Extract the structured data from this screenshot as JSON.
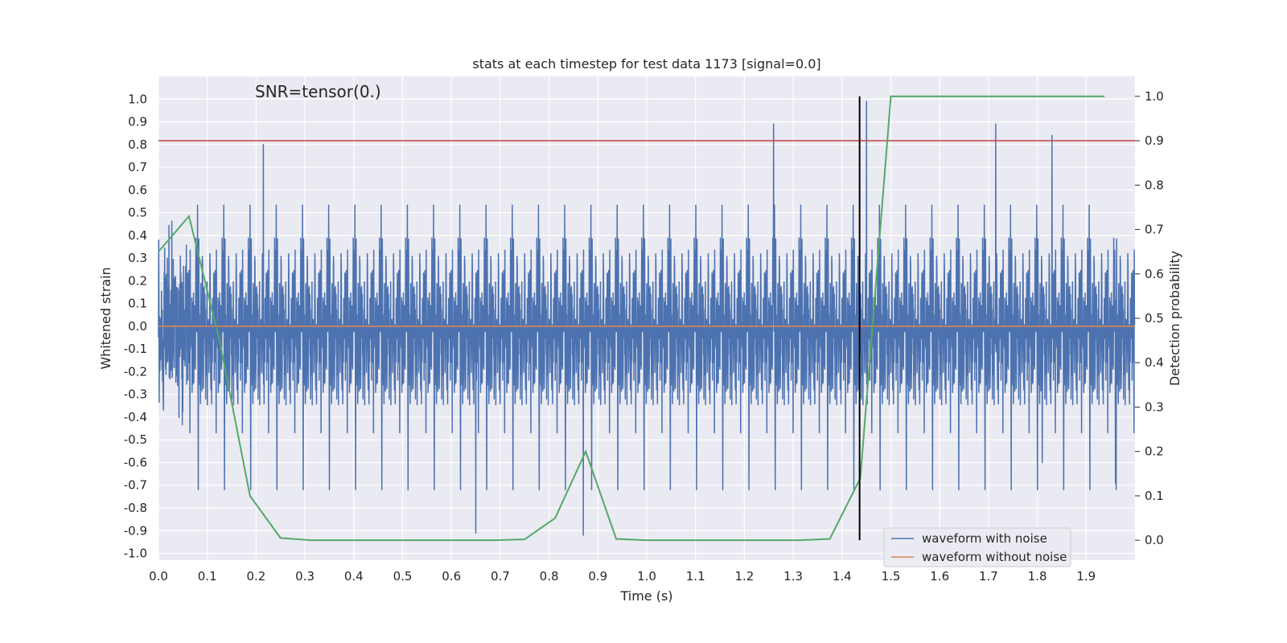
{
  "chart_data": {
    "type": "line",
    "title": "stats at each timestep for test data 1173 [signal=0.0]",
    "annotation": "SNR=tensor(0.)",
    "xlabel": "Time (s)",
    "ylabel": "Whitened strain",
    "y2label": "Detection probability",
    "xlim": [
      0.0,
      2.0
    ],
    "ylim": [
      -1.03,
      1.1
    ],
    "y2lim": [
      -0.045,
      1.045
    ],
    "x_ticks": [
      "0.0",
      "0.1",
      "0.2",
      "0.3",
      "0.4",
      "0.5",
      "0.6",
      "0.7",
      "0.8",
      "0.9",
      "1.0",
      "1.1",
      "1.2",
      "1.3",
      "1.4",
      "1.5",
      "1.6",
      "1.7",
      "1.8",
      "1.9"
    ],
    "y_ticks": [
      "-1.0",
      "-0.9",
      "-0.8",
      "-0.7",
      "-0.6",
      "-0.5",
      "-0.4",
      "-0.3",
      "-0.2",
      "-0.1",
      "0.0",
      "0.1",
      "0.2",
      "0.3",
      "0.4",
      "0.5",
      "0.6",
      "0.7",
      "0.8",
      "0.9",
      "1.0"
    ],
    "y2_ticks": [
      "0.0",
      "0.1",
      "0.2",
      "0.3",
      "0.4",
      "0.5",
      "0.6",
      "0.7",
      "0.8",
      "0.9",
      "1.0"
    ],
    "grid": true,
    "legend_position": "bottom-right",
    "series": [
      {
        "name": "waveform with noise",
        "axis": "left",
        "color": "#4c72b0",
        "description": "dense whitened-strain noise, roughly 4096 samples",
        "sample_rate": 2048,
        "amplitude_approx": 0.2,
        "notable_peaks": [
          {
            "x": 0.215,
            "y": 0.8
          },
          {
            "x": 0.65,
            "y": -0.91
          },
          {
            "x": 0.87,
            "y": -0.92
          },
          {
            "x": 1.26,
            "y": 0.89
          },
          {
            "x": 1.45,
            "y": 0.99
          },
          {
            "x": 1.715,
            "y": 0.89
          },
          {
            "x": 1.81,
            "y": -0.6
          },
          {
            "x": 1.83,
            "y": 0.84
          },
          {
            "x": 1.96,
            "y": -0.69
          }
        ]
      },
      {
        "name": "waveform without noise",
        "axis": "left",
        "color": "#dd8452",
        "x": [
          0.0,
          2.0
        ],
        "y": [
          0.0,
          0.0
        ]
      },
      {
        "name": "",
        "axis": "right",
        "color": "#55a868",
        "x": [
          0.0,
          0.0625,
          0.125,
          0.1875,
          0.25,
          0.3125,
          0.375,
          0.4375,
          0.5,
          0.5625,
          0.625,
          0.6875,
          0.75,
          0.8125,
          0.875,
          0.9375,
          1.0,
          1.0625,
          1.125,
          1.1875,
          1.25,
          1.3125,
          1.375,
          1.4375,
          1.5,
          1.5625,
          1.625,
          1.6875,
          1.75,
          1.8125,
          1.875,
          1.9375
        ],
        "y": [
          0.65,
          0.73,
          0.45,
          0.1,
          0.005,
          0.0,
          0.0,
          0.0,
          0.0,
          0.0,
          0.0,
          0.0,
          0.002,
          0.05,
          0.2,
          0.003,
          0.0,
          0.0,
          0.0,
          0.0,
          0.0,
          0.0,
          0.003,
          0.14,
          1.0,
          1.0,
          1.0,
          1.0,
          1.0,
          1.0,
          1.0,
          1.0
        ]
      }
    ],
    "threshold_line": {
      "axis": "right",
      "value": 0.9,
      "color": "#c44e52"
    },
    "event_marker": {
      "x": 1.436,
      "y2_range": [
        0.0,
        1.0
      ],
      "color": "#000000"
    },
    "legend": [
      {
        "label": "waveform with noise",
        "color": "#4c72b0"
      },
      {
        "label": "waveform without noise",
        "color": "#dd8452"
      }
    ]
  }
}
